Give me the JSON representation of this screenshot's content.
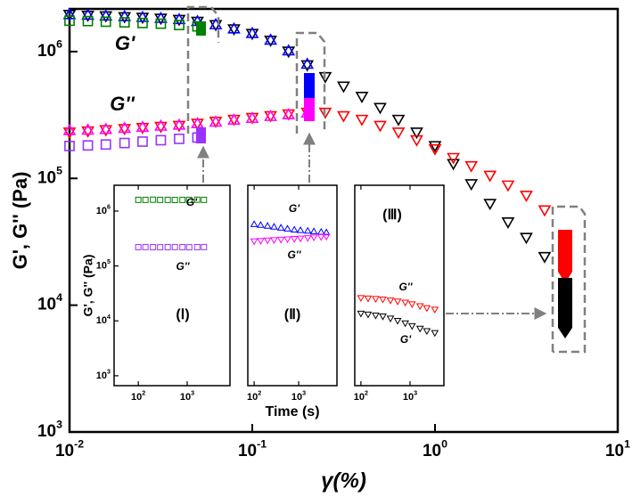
{
  "chart_data": [
    {
      "type": "scatter",
      "xlabel": "γ(%)",
      "ylabel": "G', G'' (Pa)",
      "log_x": true,
      "log_y": true,
      "xlim": [
        0.01,
        10
      ],
      "ylim": [
        1000,
        2170000
      ],
      "xticks": [
        {
          "value": 0.01,
          "label": "10",
          "exp": "-2"
        },
        {
          "value": 0.1,
          "label": "10",
          "exp": "-1"
        },
        {
          "value": 1,
          "label": "10",
          "exp": "0"
        },
        {
          "value": 10,
          "label": "10",
          "exp": "1"
        }
      ],
      "yticks": [
        {
          "value": 1000,
          "label": "10",
          "exp": "3"
        },
        {
          "value": 10000,
          "label": "10",
          "exp": "4"
        },
        {
          "value": 100000,
          "label": "10",
          "exp": "5"
        },
        {
          "value": 1000000,
          "label": "10",
          "exp": "6"
        }
      ],
      "annotations": [
        "G'",
        "G''"
      ],
      "series": [
        {
          "color": "#000000",
          "marker": "triangle-down",
          "x": [
            0.01,
            0.0126,
            0.0158,
            0.02,
            0.0251,
            0.0316,
            0.0398,
            0.0501,
            0.0631,
            0.0794,
            0.1,
            0.126,
            0.158,
            0.2,
            0.251,
            0.316,
            0.398,
            0.501,
            0.631,
            0.794,
            1,
            1.26,
            1.58,
            2,
            2.51,
            3.16,
            3.98
          ],
          "values": [
            1950000,
            1920000,
            1900000,
            1870000,
            1850000,
            1820000,
            1780000,
            1720000,
            1620000,
            1500000,
            1380000,
            1220000,
            1000000,
            780000,
            630000,
            530000,
            440000,
            360000,
            290000,
            230000,
            180000,
            130000,
            90000,
            63000,
            45000,
            34000,
            24000
          ]
        },
        {
          "color": "#ff0000",
          "marker": "triangle-down",
          "x": [
            0.01,
            0.0126,
            0.0158,
            0.02,
            0.0251,
            0.0316,
            0.0398,
            0.0501,
            0.0631,
            0.0794,
            0.1,
            0.126,
            0.158,
            0.2,
            0.251,
            0.316,
            0.398,
            0.501,
            0.631,
            0.794,
            1,
            1.26,
            1.58,
            2,
            2.51,
            3.16,
            3.98
          ],
          "values": [
            230000,
            235000,
            240000,
            245000,
            250000,
            255000,
            260000,
            270000,
            280000,
            290000,
            300000,
            310000,
            320000,
            330000,
            330000,
            310000,
            290000,
            260000,
            230000,
            200000,
            170000,
            145000,
            125000,
            105000,
            88000,
            73000,
            56000
          ]
        },
        {
          "color": "#0000ff",
          "marker": "triangle-up",
          "x": [
            0.01,
            0.0126,
            0.0158,
            0.02,
            0.0251,
            0.0316,
            0.0398,
            0.0501,
            0.0631,
            0.0794,
            0.1,
            0.126,
            0.158,
            0.2
          ],
          "values": [
            1970000,
            1950000,
            1920000,
            1900000,
            1870000,
            1840000,
            1800000,
            1740000,
            1640000,
            1520000,
            1400000,
            1240000,
            1020000,
            800000
          ]
        },
        {
          "color": "#ff00ff",
          "marker": "triangle-up",
          "x": [
            0.01,
            0.0126,
            0.0158,
            0.02,
            0.0251,
            0.0316,
            0.0398,
            0.0501,
            0.0631,
            0.0794,
            0.1,
            0.126,
            0.158,
            0.2
          ],
          "values": [
            240000,
            242000,
            245000,
            250000,
            255000,
            260000,
            265000,
            272000,
            280000,
            290000,
            300000,
            310000,
            320000,
            330000
          ]
        },
        {
          "color": "#008000",
          "marker": "square",
          "x": [
            0.01,
            0.0126,
            0.0158,
            0.02,
            0.0251,
            0.0316,
            0.0398,
            0.0501
          ],
          "values": [
            1750000,
            1740000,
            1720000,
            1700000,
            1680000,
            1660000,
            1620000,
            1580000
          ]
        },
        {
          "color": "#9933ff",
          "marker": "square",
          "x": [
            0.01,
            0.0126,
            0.0158,
            0.02,
            0.0251,
            0.0316,
            0.0398,
            0.0501
          ],
          "values": [
            180000,
            182000,
            185000,
            190000,
            195000,
            200000,
            205000,
            210000
          ]
        }
      ]
    },
    {
      "type": "scatter",
      "ylabel": "G', G'' (Pa)",
      "log_x": true,
      "log_y": true,
      "xlim": [
        32,
        7500
      ],
      "ylim": [
        660,
        2950000
      ],
      "xticks": [
        {
          "value": 100,
          "label": "10",
          "exp": "2"
        },
        {
          "value": 1000,
          "label": "10",
          "exp": "3"
        }
      ],
      "yticks": [
        {
          "value": 1000,
          "label": "10",
          "exp": "3"
        },
        {
          "value": 10000,
          "label": "10",
          "exp": "4"
        },
        {
          "value": 100000,
          "label": "10",
          "exp": "5"
        },
        {
          "value": 1000000,
          "label": "10",
          "exp": "6"
        }
      ],
      "annotations": [
        "G'",
        "G''",
        "(Ⅰ)"
      ],
      "series": [
        {
          "color": "#008000",
          "marker": "square",
          "x": [
            100,
            140,
            200,
            280,
            400,
            560,
            800,
            1100,
            1600,
            2200
          ],
          "values": [
            1600000,
            1600000,
            1610000,
            1600000,
            1600000,
            1590000,
            1600000,
            1600000,
            1610000,
            1600000
          ]
        },
        {
          "color": "#9933ff",
          "marker": "square",
          "x": [
            100,
            140,
            200,
            280,
            400,
            560,
            800,
            1100,
            1600,
            2200
          ],
          "values": [
            220000,
            221000,
            220000,
            219000,
            220000,
            221000,
            220000,
            219000,
            220000,
            221000
          ]
        }
      ]
    },
    {
      "type": "scatter",
      "xlabel": "Time (s)",
      "log_x": true,
      "log_y": true,
      "xlim": [
        72,
        7250
      ],
      "ylim": [
        660,
        2950000
      ],
      "xticks": [
        {
          "value": 100,
          "label": "10",
          "exp": "2"
        },
        {
          "value": 1000,
          "label": "10",
          "exp": "3"
        }
      ],
      "annotations": [
        "G'",
        "G''",
        "(Ⅱ)"
      ],
      "series": [
        {
          "color": "#0000ff",
          "marker": "triangle-up",
          "x": [
            100,
            140,
            200,
            280,
            400,
            560,
            800,
            1100,
            1600,
            2200,
            3200,
            4200
          ],
          "values": [
            580000,
            560000,
            540000,
            520000,
            500000,
            480000,
            460000,
            450000,
            440000,
            430000,
            420000,
            410000
          ]
        },
        {
          "color": "#ff00ff",
          "marker": "triangle-down",
          "x": [
            100,
            140,
            200,
            280,
            400,
            560,
            800,
            1100,
            1600,
            2200,
            3200,
            4200
          ],
          "values": [
            280000,
            285000,
            290000,
            295000,
            300000,
            305000,
            310000,
            315000,
            320000,
            330000,
            335000,
            340000
          ]
        }
      ]
    },
    {
      "type": "scatter",
      "log_x": true,
      "log_y": true,
      "xlim": [
        75,
        4900
      ],
      "ylim": [
        660,
        2950000
      ],
      "xticks": [
        {
          "value": 100,
          "label": "10",
          "exp": "2"
        },
        {
          "value": 1000,
          "label": "10",
          "exp": "3"
        }
      ],
      "annotations": [
        "(Ⅲ)",
        "G''",
        "G'"
      ],
      "series": [
        {
          "color": "#ff0000",
          "marker": "triangle-down",
          "x": [
            100,
            140,
            200,
            280,
            400,
            560,
            800,
            1100,
            1600,
            2200,
            3200
          ],
          "values": [
            26000,
            25500,
            25000,
            24500,
            23500,
            22500,
            21500,
            20000,
            18500,
            17000,
            16000
          ]
        },
        {
          "color": "#000000",
          "marker": "triangle-down",
          "x": [
            100,
            140,
            200,
            280,
            400,
            560,
            800,
            1100,
            1600,
            2200,
            3200
          ],
          "values": [
            13500,
            13000,
            12500,
            12000,
            11000,
            10000,
            9000,
            8000,
            7200,
            6500,
            6000
          ]
        }
      ]
    }
  ]
}
